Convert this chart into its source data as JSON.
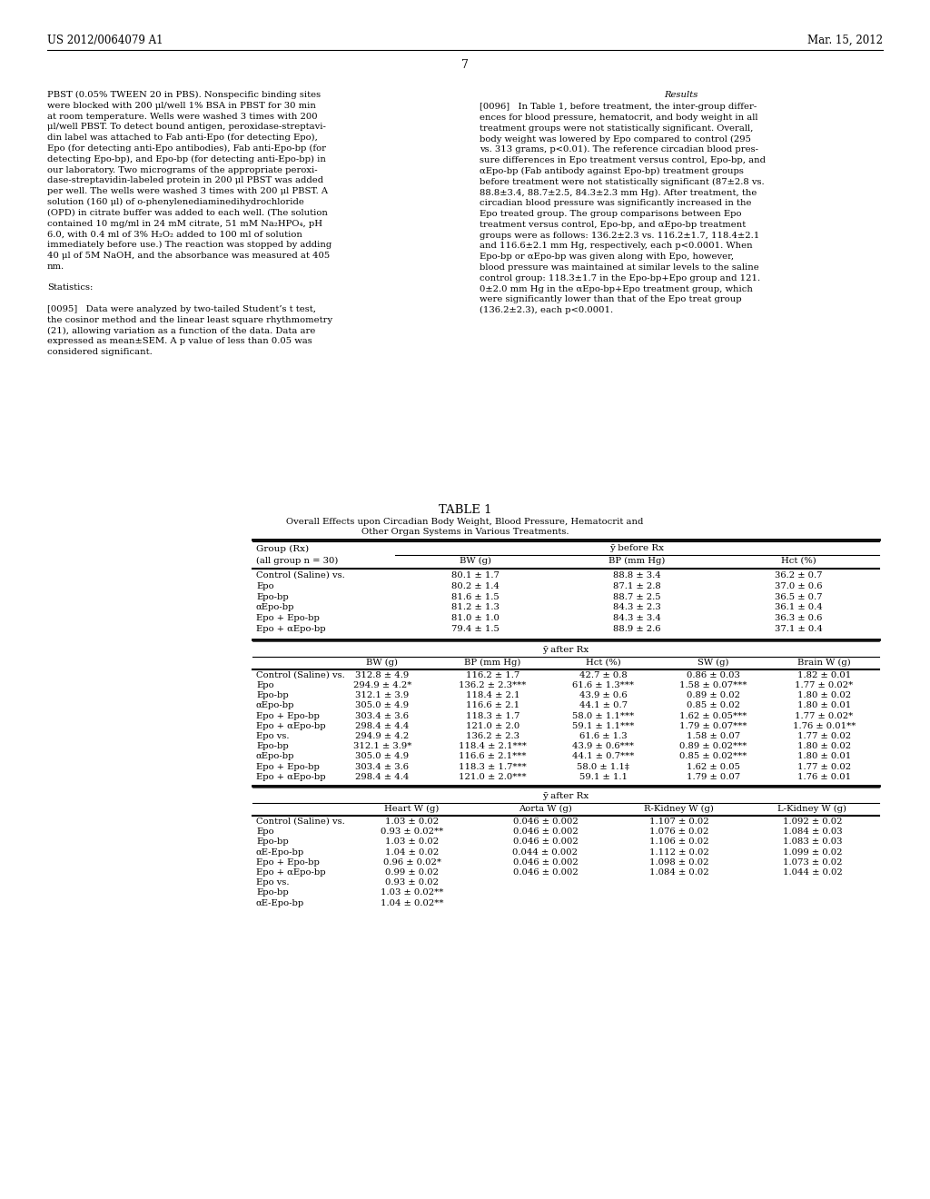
{
  "page_header_left": "US 2012/0064079 A1",
  "page_header_right": "Mar. 15, 2012",
  "page_number": "7",
  "left_col_text": [
    "PBST (0.05% TWEEN 20 in PBS). Nonspecific binding sites",
    "were blocked with 200 μl/well 1% BSA in PBST for 30 min",
    "at room temperature. Wells were washed 3 times with 200",
    "μl/well PBST. To detect bound antigen, peroxidase-streptavi-",
    "din label was attached to Fab anti-Epo (for detecting Epo),",
    "Epo (for detecting anti-Epo antibodies), Fab anti-Epo-bp (for",
    "detecting Epo-bp), and Epo-bp (for detecting anti-Epo-bp) in",
    "our laboratory. Two micrograms of the appropriate peroxi-",
    "dase-streptavidin-labeled protein in 200 μl PBST was added",
    "per well. The wells were washed 3 times with 200 μl PBST. A",
    "solution (160 μl) of o-phenylenediaminedihydrochloride",
    "(OPD) in citrate buffer was added to each well. (The solution",
    "contained 10 mg/ml in 24 mM citrate, 51 mM Na₂HPO₄, pH",
    "6.0, with 0.4 ml of 3% H₂O₂ added to 100 ml of solution",
    "immediately before use.) The reaction was stopped by adding",
    "40 μl of 5M NaOH, and the absorbance was measured at 405",
    "nm.",
    "",
    "Statistics:",
    "",
    "[0095]   Data were analyzed by two-tailed Student’s t test,",
    "the cosinor method and the linear least square rhythmometry",
    "(21), allowing variation as a function of the data. Data are",
    "expressed as mean±SEM. A p value of less than 0.05 was",
    "considered significant."
  ],
  "right_col_text": [
    "Results",
    "",
    "[0096]   In Table 1, before treatment, the inter-group differ-",
    "ences for blood pressure, hematocrit, and body weight in all",
    "treatment groups were not statistically significant. Overall,",
    "body weight was lowered by Epo compared to control (295",
    "vs. 313 grams, p<0.01). The reference circadian blood pres-",
    "sure differences in Epo treatment versus control, Epo-bp, and",
    "αEpo-bp (Fab antibody against Epo-bp) treatment groups",
    "before treatment were not statistically significant (87±2.8 vs.",
    "88.8±3.4, 88.7±2.5, 84.3±2.3 mm Hg). After treatment, the",
    "circadian blood pressure was significantly increased in the",
    "Epo treated group. The group comparisons between Epo",
    "treatment versus control, Epo-bp, and αEpo-bp treatment",
    "groups were as follows: 136.2±2.3 vs. 116.2±1.7, 118.4±2.1",
    "and 116.6±2.1 mm Hg, respectively, each p<0.0001. When",
    "Epo-bp or αEpo-bp was given along with Epo, however,",
    "blood pressure was maintained at similar levels to the saline",
    "control group: 118.3±1.7 in the Epo-bp+Epo group and 121.",
    "0±2.0 mm Hg in the αEpo-bp+Epo treatment group, which",
    "were significantly lower than that of the Epo treat group",
    "(136.2±2.3), each p<0.0001."
  ],
  "table_title": "TABLE 1",
  "table_subtitle1": "Overall Effects upon Circadian Body Weight, Blood Pressure, Hematocrit and",
  "table_subtitle2": "Other Organ Systems in Various Treatments.",
  "section1_header": "ȳ before Rx",
  "section1_col_labels": [
    "Group (Rx)",
    "BW (g)",
    "BP (mm Hg)",
    "Hct (%)"
  ],
  "section1_subheader": "(all group n = 30)",
  "section1_rows": [
    [
      "Control (Saline) vs.",
      "80.1 ± 1.7",
      "88.8 ± 3.4",
      "36.2 ± 0.7"
    ],
    [
      "Epo",
      "80.2 ± 1.4",
      "87.1 ± 2.8",
      "37.0 ± 0.6"
    ],
    [
      "Epo-bp",
      "81.6 ± 1.5",
      "88.7 ± 2.5",
      "36.5 ± 0.7"
    ],
    [
      "αEpo-bp",
      "81.2 ± 1.3",
      "84.3 ± 2.3",
      "36.1 ± 0.4"
    ],
    [
      "Epo + Epo-bp",
      "81.0 ± 1.0",
      "84.3 ± 3.4",
      "36.3 ± 0.6"
    ],
    [
      "Epo + αEpo-bp",
      "79.4 ± 1.5",
      "88.9 ± 2.6",
      "37.1 ± 0.4"
    ]
  ],
  "section2_header": "ȳ after Rx",
  "section2_col_labels": [
    "BW (g)",
    "BP (mm Hg)",
    "Hct (%)",
    "SW (g)",
    "Brain W (g)"
  ],
  "section2_rows": [
    [
      "Control (Saline) vs.",
      "312.8 ± 4.9",
      "116.2 ± 1.7",
      "42.7 ± 0.8",
      "0.86 ± 0.03",
      "1.82 ± 0.01"
    ],
    [
      "Epo",
      "294.9 ± 4.2*",
      "136.2 ± 2.3***",
      "61.6 ± 1.3***",
      "1.58 ± 0.07***",
      "1.77 ± 0.02*"
    ],
    [
      "Epo-bp",
      "312.1 ± 3.9",
      "118.4 ± 2.1",
      "43.9 ± 0.6",
      "0.89 ± 0.02",
      "1.80 ± 0.02"
    ],
    [
      "αEpo-bp",
      "305.0 ± 4.9",
      "116.6 ± 2.1",
      "44.1 ± 0.7",
      "0.85 ± 0.02",
      "1.80 ± 0.01"
    ],
    [
      "Epo + Epo-bp",
      "303.4 ± 3.6",
      "118.3 ± 1.7",
      "58.0 ± 1.1***",
      "1.62 ± 0.05***",
      "1.77 ± 0.02*"
    ],
    [
      "Epo + αEpo-bp",
      "298.4 ± 4.4",
      "121.0 ± 2.0",
      "59.1 ± 1.1***",
      "1.79 ± 0.07***",
      "1.76 ± 0.01**"
    ],
    [
      "Epo vs.",
      "294.9 ± 4.2",
      "136.2 ± 2.3",
      "61.6 ± 1.3",
      "1.58 ± 0.07",
      "1.77 ± 0.02"
    ],
    [
      "Epo-bp",
      "312.1 ± 3.9*",
      "118.4 ± 2.1***",
      "43.9 ± 0.6***",
      "0.89 ± 0.02***",
      "1.80 ± 0.02"
    ],
    [
      "αEpo-bp",
      "305.0 ± 4.9",
      "116.6 ± 2.1***",
      "44.1 ± 0.7***",
      "0.85 ± 0.02***",
      "1.80 ± 0.01"
    ],
    [
      "Epo + Epo-bp",
      "303.4 ± 3.6",
      "118.3 ± 1.7***",
      "58.0 ± 1.1‡",
      "1.62 ± 0.05",
      "1.77 ± 0.02"
    ],
    [
      "Epo + αEpo-bp",
      "298.4 ± 4.4",
      "121.0 ± 2.0***",
      "59.1 ± 1.1",
      "1.79 ± 0.07",
      "1.76 ± 0.01"
    ]
  ],
  "section3_header": "ȳ after Rx",
  "section3_col_labels": [
    "Heart W (g)",
    "Aorta W (g)",
    "R-Kidney W (g)",
    "L-Kidney W (g)"
  ],
  "section3_rows": [
    [
      "Control (Saline) vs.",
      "1.03 ± 0.02",
      "0.046 ± 0.002",
      "1.107 ± 0.02",
      "1.092 ± 0.02"
    ],
    [
      "Epo",
      "0.93 ± 0.02**",
      "0.046 ± 0.002",
      "1.076 ± 0.02",
      "1.084 ± 0.03"
    ],
    [
      "Epo-bp",
      "1.03 ± 0.02",
      "0.046 ± 0.002",
      "1.106 ± 0.02",
      "1.083 ± 0.03"
    ],
    [
      "αE-Epo-bp",
      "1.04 ± 0.02",
      "0.044 ± 0.002",
      "1.112 ± 0.02",
      "1.099 ± 0.02"
    ],
    [
      "Epo + Epo-bp",
      "0.96 ± 0.02*",
      "0.046 ± 0.002",
      "1.098 ± 0.02",
      "1.073 ± 0.02"
    ],
    [
      "Epo + αEpo-bp",
      "0.99 ± 0.02",
      "0.046 ± 0.002",
      "1.084 ± 0.02",
      "1.044 ± 0.02"
    ],
    [
      "Epo vs.",
      "0.93 ± 0.02",
      "",
      "",
      ""
    ],
    [
      "Epo-bp",
      "1.03 ± 0.02**",
      "",
      "",
      ""
    ],
    [
      "αE-Epo-bp",
      "1.04 ± 0.02**",
      "",
      "",
      ""
    ]
  ]
}
